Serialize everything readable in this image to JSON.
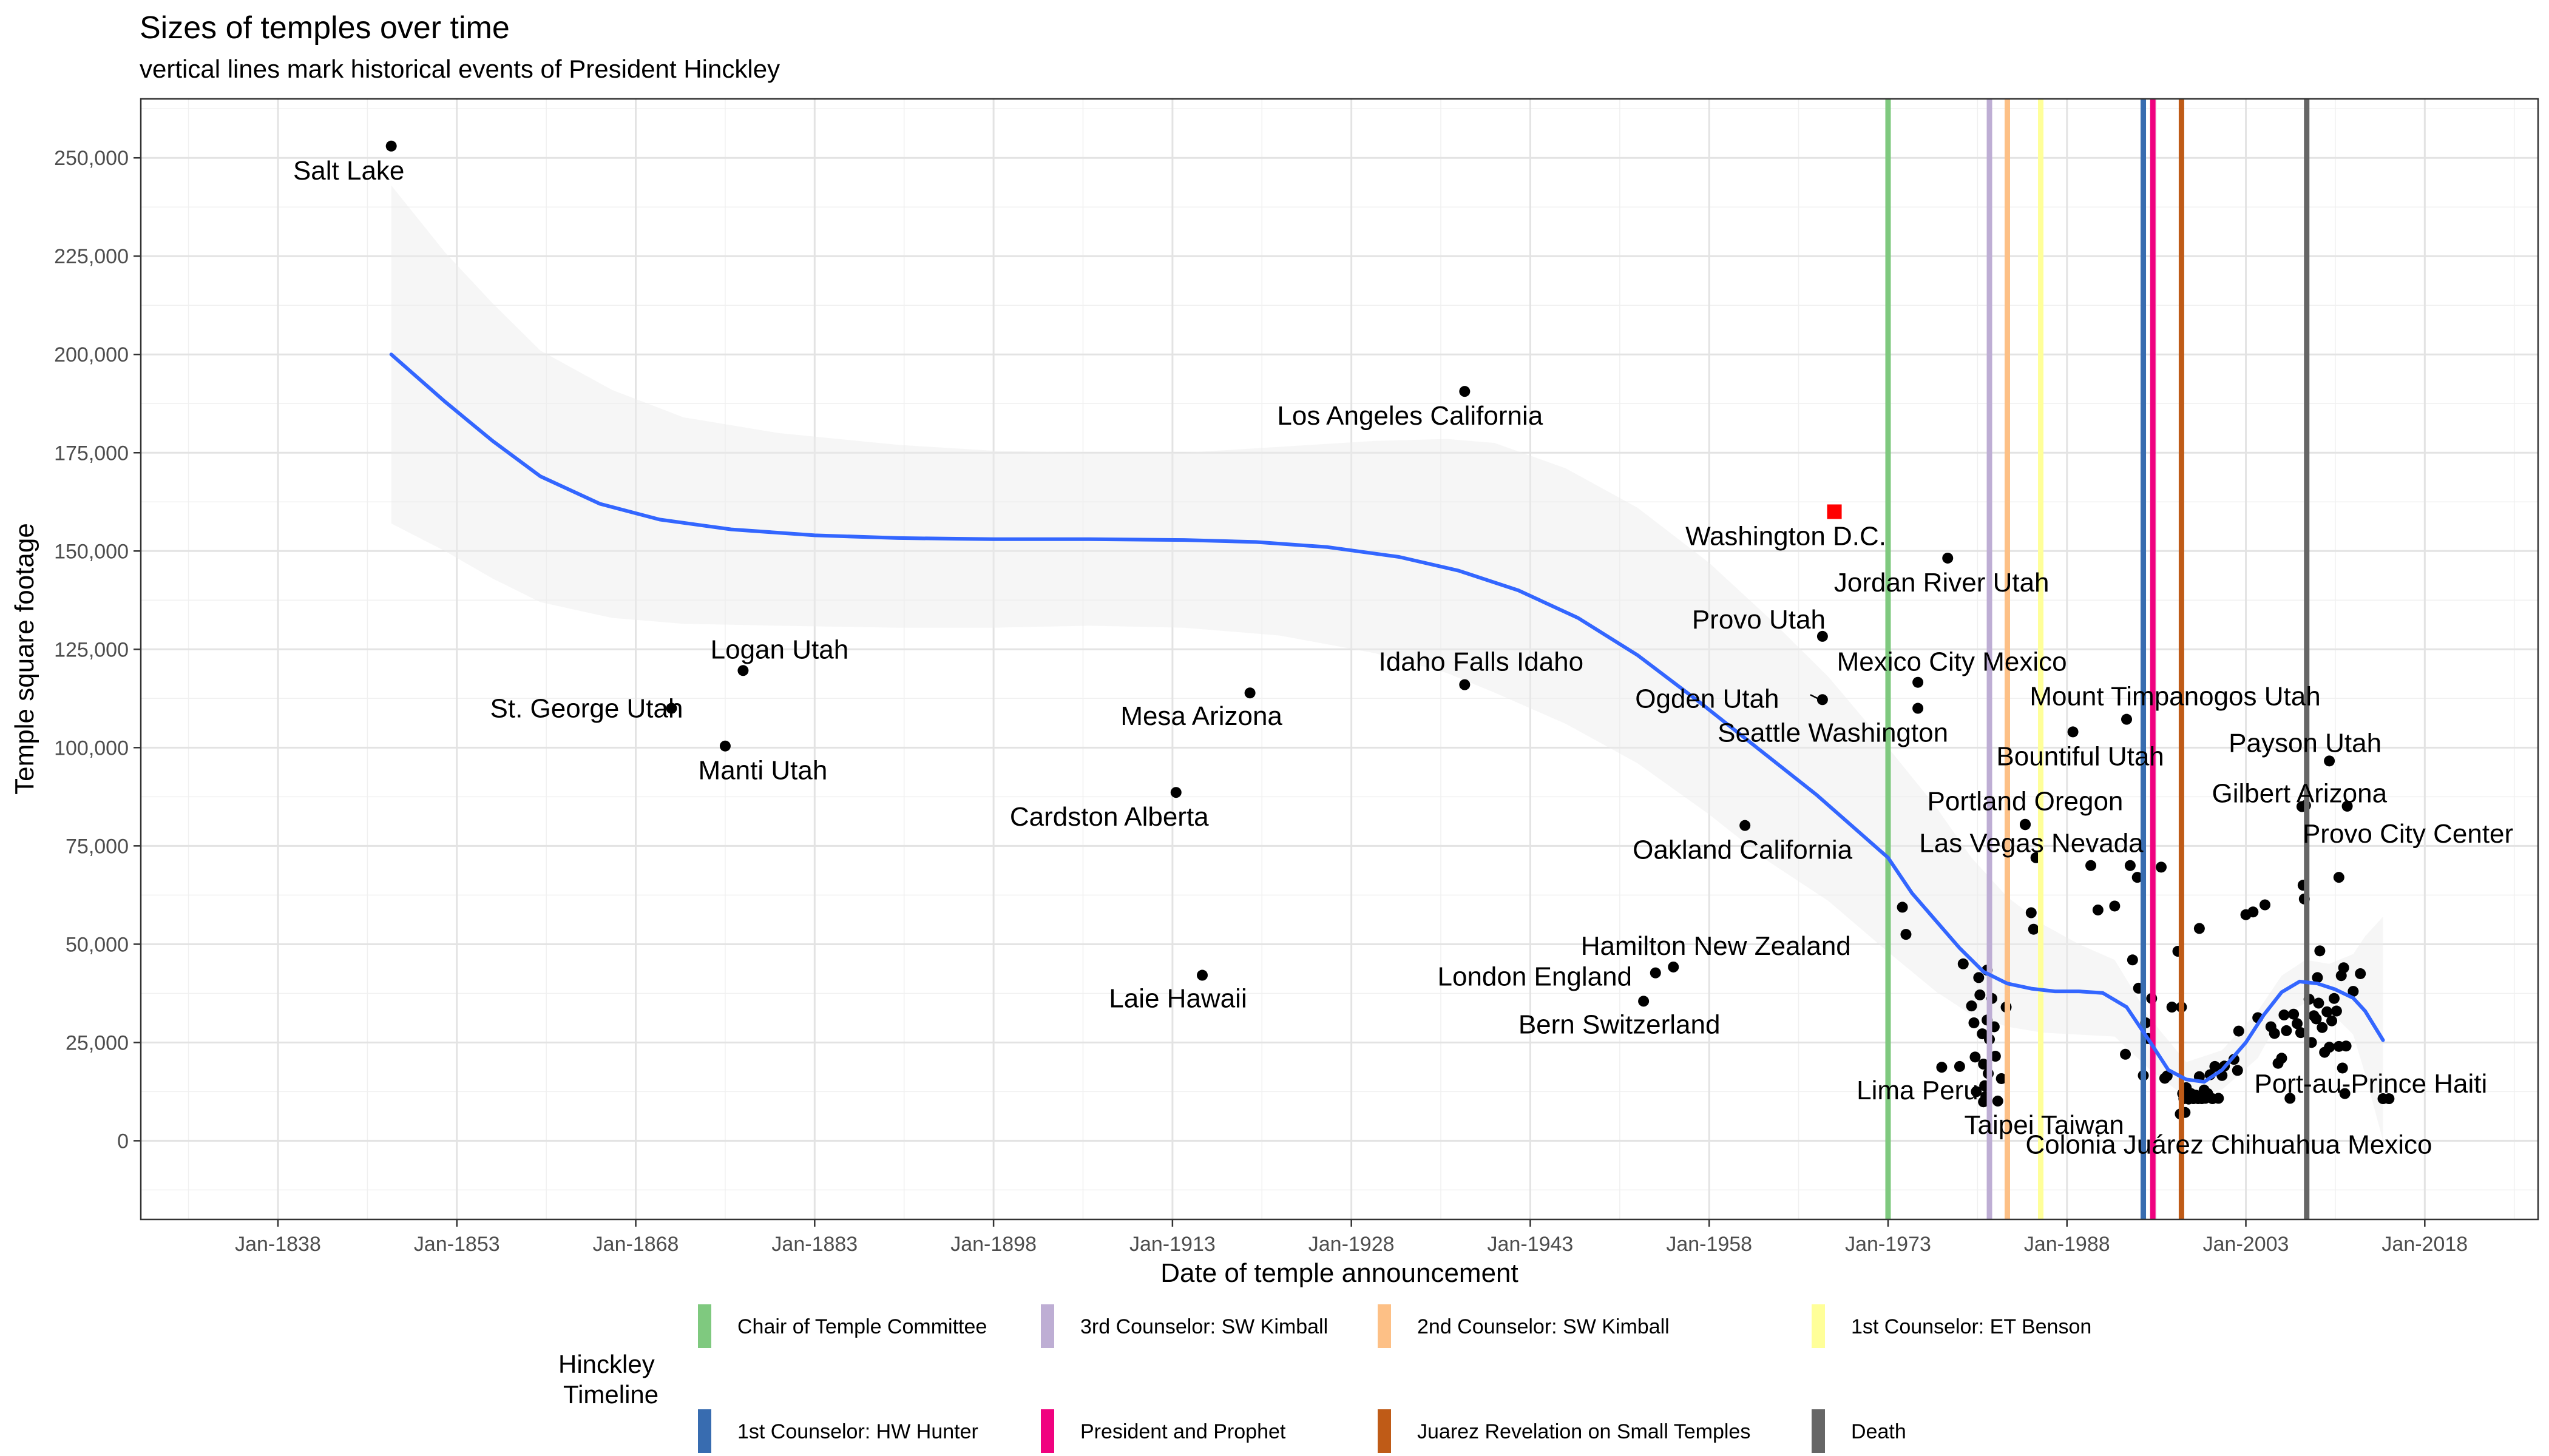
{
  "chart_data": {
    "type": "scatter",
    "title": "Sizes of temples over time",
    "subtitle": "vertical lines mark historical events of President Hinckley",
    "xlabel": "Date of temple announcement",
    "ylabel": "Temple square footage",
    "xlim": [
      1826.5,
      2027.5
    ],
    "ylim": [
      -20000,
      265000
    ],
    "x_ticks": [
      1838,
      1853,
      1868,
      1883,
      1898,
      1913,
      1928,
      1943,
      1958,
      1973,
      1988,
      2003,
      2018
    ],
    "x_tick_labels": [
      "Jan-1838",
      "Jan-1853",
      "Jan-1868",
      "Jan-1883",
      "Jan-1898",
      "Jan-1913",
      "Jan-1928",
      "Jan-1943",
      "Jan-1958",
      "Jan-1973",
      "Jan-1988",
      "Jan-2003",
      "Jan-2018"
    ],
    "y_ticks": [
      0,
      25000,
      50000,
      75000,
      100000,
      125000,
      150000,
      175000,
      200000,
      225000,
      250000
    ],
    "y_tick_labels": [
      "0",
      "25,000",
      "50,000",
      "75,000",
      "100,000",
      "125,000",
      "150,000",
      "175,000",
      "200,000",
      "225,000",
      "250,000"
    ],
    "grid": true,
    "legend_title": "Hinckley Timeline",
    "legend_position": "bottom",
    "events": [
      {
        "name": "Chair of Temple Committee",
        "x": 1973.0,
        "color": "#7fc97f"
      },
      {
        "name": "3rd Counselor: SW Kimball",
        "x": 1981.5,
        "color": "#beaed4"
      },
      {
        "name": "2nd Counselor: SW Kimball",
        "x": 1983.0,
        "color": "#fdc086"
      },
      {
        "name": "1st Counselor: ET Benson",
        "x": 1985.8,
        "color": "#ffff99"
      },
      {
        "name": "1st Counselor: HW Hunter",
        "x": 1994.4,
        "color": "#386cb0"
      },
      {
        "name": "President and Prophet",
        "x": 1995.2,
        "color": "#f0027f"
      },
      {
        "name": "Juarez Revelation on Small Temples",
        "x": 1997.6,
        "color": "#bf5b17"
      },
      {
        "name": "Death",
        "x": 2008.1,
        "color": "#666666"
      }
    ],
    "labeled_points": [
      {
        "name": "Salt Lake",
        "x": 1847.5,
        "y": 253000
      },
      {
        "name": "St. George Utah",
        "x": 1871.0,
        "y": 110000
      },
      {
        "name": "Logan Utah",
        "x": 1877.0,
        "y": 119600
      },
      {
        "name": "Manti Utah",
        "x": 1875.5,
        "y": 100400
      },
      {
        "name": "Laie Hawaii",
        "x": 1915.5,
        "y": 42100
      },
      {
        "name": "Cardston Alberta",
        "x": 1913.3,
        "y": 88600
      },
      {
        "name": "Mesa Arizona",
        "x": 1919.5,
        "y": 113900
      },
      {
        "name": "Idaho Falls Idaho",
        "x": 1937.5,
        "y": 116000
      },
      {
        "name": "Los Angeles California",
        "x": 1937.5,
        "y": 190600
      },
      {
        "name": "Bern Switzerland",
        "x": 1952.5,
        "y": 35500
      },
      {
        "name": "London England",
        "x": 1953.5,
        "y": 42700
      },
      {
        "name": "Hamilton New Zealand",
        "x": 1955.0,
        "y": 44200
      },
      {
        "name": "Oakland California",
        "x": 1961.0,
        "y": 80200
      },
      {
        "name": "Ogden Utah",
        "x": 1967.5,
        "y": 112200
      },
      {
        "name": "Provo Utah",
        "x": 1967.5,
        "y": 128300
      },
      {
        "name": "Washington D.C.",
        "x": 1968.5,
        "y": 160000
      },
      {
        "name": "Seattle Washington",
        "x": 1975.5,
        "y": 110000
      },
      {
        "name": "Mexico City Mexico",
        "x": 1975.5,
        "y": 116600
      },
      {
        "name": "Jordan River Utah",
        "x": 1978.0,
        "y": 148200
      },
      {
        "name": "Lima Peru",
        "x": 1977.5,
        "y": 18700
      },
      {
        "name": "Taipei Taiwan",
        "x": 1981.0,
        "y": 9900
      },
      {
        "name": "Portland Oregon",
        "x": 1984.5,
        "y": 80500
      },
      {
        "name": "Las Vegas Nevada",
        "x": 1984.5,
        "y": 80400
      },
      {
        "name": "Bountiful Utah",
        "x": 1988.5,
        "y": 104000
      },
      {
        "name": "Mount Timpanogos Utah",
        "x": 1993.0,
        "y": 107200
      },
      {
        "name": "Gilbert Arizona",
        "x": 2008.0,
        "y": 85300
      },
      {
        "name": "Payson Utah",
        "x": 2010.0,
        "y": 96600
      },
      {
        "name": "Provo City Center",
        "x": 2011.5,
        "y": 85100
      },
      {
        "name": "Colonia Juárez Chihuahua Mexico",
        "x": 1997.5,
        "y": 6800
      },
      {
        "name": "Port-au-Prince Haiti",
        "x": 2015.0,
        "y": 10700
      }
    ],
    "other_points": [
      [
        1974.2,
        59400
      ],
      [
        1974.5,
        52500
      ],
      [
        1979.0,
        18900
      ],
      [
        1979.3,
        45000
      ],
      [
        1980.0,
        34300
      ],
      [
        1980.2,
        30000
      ],
      [
        1980.3,
        21300
      ],
      [
        1980.4,
        12500
      ],
      [
        1980.6,
        41500
      ],
      [
        1980.7,
        37100
      ],
      [
        1980.9,
        27200
      ],
      [
        1981.0,
        19500
      ],
      [
        1981.1,
        14000
      ],
      [
        1981.2,
        11300
      ],
      [
        1981.3,
        30700
      ],
      [
        1981.3,
        43400
      ],
      [
        1981.4,
        17100
      ],
      [
        1981.5,
        25800
      ],
      [
        1981.7,
        36200
      ],
      [
        1981.9,
        29000
      ],
      [
        1982.0,
        21500
      ],
      [
        1982.2,
        10100
      ],
      [
        1982.5,
        15800
      ],
      [
        1982.9,
        34000
      ],
      [
        1985.0,
        58000
      ],
      [
        1985.2,
        53800
      ],
      [
        1985.4,
        72000
      ],
      [
        1990.0,
        70000
      ],
      [
        1990.6,
        58700
      ],
      [
        1992.0,
        59700
      ],
      [
        1992.9,
        22000
      ],
      [
        1993.3,
        70000
      ],
      [
        1993.5,
        46000
      ],
      [
        1993.9,
        67000
      ],
      [
        1994.0,
        38800
      ],
      [
        1994.4,
        16600
      ],
      [
        1994.6,
        30000
      ],
      [
        1994.8,
        26000
      ],
      [
        1995.1,
        36200
      ],
      [
        1995.9,
        69600
      ],
      [
        1996.2,
        15900
      ],
      [
        1996.4,
        16500
      ],
      [
        1996.8,
        34000
      ],
      [
        1997.3,
        48200
      ],
      [
        1997.6,
        34000
      ],
      [
        1997.7,
        12000
      ],
      [
        1997.8,
        10700
      ],
      [
        1997.9,
        7200
      ],
      [
        1998.0,
        13500
      ],
      [
        1998.2,
        10600
      ],
      [
        1998.4,
        12000
      ],
      [
        1998.6,
        10700
      ],
      [
        1998.8,
        11600
      ],
      [
        1999.0,
        10700
      ],
      [
        1999.1,
        16300
      ],
      [
        1999.1,
        54000
      ],
      [
        1999.3,
        10700
      ],
      [
        1999.5,
        12900
      ],
      [
        1999.6,
        10800
      ],
      [
        1999.8,
        12000
      ],
      [
        2000.0,
        16800
      ],
      [
        2000.2,
        10700
      ],
      [
        2000.4,
        18900
      ],
      [
        2000.7,
        10800
      ],
      [
        2001.0,
        16600
      ],
      [
        2001.2,
        19000
      ],
      [
        2002.0,
        20700
      ],
      [
        2002.3,
        17900
      ],
      [
        2002.4,
        27900
      ],
      [
        2003.0,
        57500
      ],
      [
        2003.6,
        58200
      ],
      [
        2004.0,
        31300
      ],
      [
        2004.6,
        60000
      ],
      [
        2005.1,
        29000
      ],
      [
        2005.4,
        27300
      ],
      [
        2005.7,
        19700
      ],
      [
        2006.0,
        21000
      ],
      [
        2006.2,
        32000
      ],
      [
        2006.4,
        28000
      ],
      [
        2006.7,
        10800
      ],
      [
        2007.0,
        32200
      ],
      [
        2007.3,
        29800
      ],
      [
        2007.6,
        27500
      ],
      [
        2007.7,
        85000
      ],
      [
        2007.8,
        65000
      ],
      [
        2007.9,
        61500
      ],
      [
        2008.3,
        36000
      ],
      [
        2008.5,
        25000
      ],
      [
        2008.7,
        31800
      ],
      [
        2008.9,
        31000
      ],
      [
        2009.0,
        41500
      ],
      [
        2009.1,
        35000
      ],
      [
        2009.2,
        48300
      ],
      [
        2009.4,
        28800
      ],
      [
        2009.6,
        22500
      ],
      [
        2009.8,
        32800
      ],
      [
        2010.0,
        23800
      ],
      [
        2010.2,
        30500
      ],
      [
        2010.4,
        36200
      ],
      [
        2010.6,
        33000
      ],
      [
        2010.8,
        67000
      ],
      [
        2010.8,
        24000
      ],
      [
        2011.0,
        42000
      ],
      [
        2011.1,
        18500
      ],
      [
        2011.2,
        44000
      ],
      [
        2011.3,
        12000
      ],
      [
        2011.4,
        24100
      ],
      [
        2012.0,
        38000
      ],
      [
        2012.6,
        42500
      ],
      [
        2014.5,
        10700
      ]
    ],
    "smooth_line": [
      [
        1847.5,
        200000
      ],
      [
        1852,
        188000
      ],
      [
        1856,
        178000
      ],
      [
        1860,
        169000
      ],
      [
        1865,
        162000
      ],
      [
        1870,
        158000
      ],
      [
        1876,
        155500
      ],
      [
        1883,
        154000
      ],
      [
        1890,
        153300
      ],
      [
        1898,
        153000
      ],
      [
        1906,
        153000
      ],
      [
        1914,
        152800
      ],
      [
        1920,
        152300
      ],
      [
        1926,
        151000
      ],
      [
        1932,
        148500
      ],
      [
        1937,
        145000
      ],
      [
        1942,
        140000
      ],
      [
        1947,
        133000
      ],
      [
        1952,
        123500
      ],
      [
        1957,
        112000
      ],
      [
        1962,
        100000
      ],
      [
        1967,
        88000
      ],
      [
        1970,
        80000
      ],
      [
        1973,
        72000
      ],
      [
        1975,
        63000
      ],
      [
        1977,
        56000
      ],
      [
        1979,
        49000
      ],
      [
        1981,
        43000
      ],
      [
        1983,
        40000
      ],
      [
        1985,
        38700
      ],
      [
        1987,
        38000
      ],
      [
        1989,
        38000
      ],
      [
        1991,
        37600
      ],
      [
        1993,
        34000
      ],
      [
        1995,
        25000
      ],
      [
        1996.5,
        18000
      ],
      [
        1998,
        15600
      ],
      [
        1999.5,
        15000
      ],
      [
        2001,
        18000
      ],
      [
        2003,
        25000
      ],
      [
        2004.5,
        32000
      ],
      [
        2006,
        37800
      ],
      [
        2007.5,
        40500
      ],
      [
        2009,
        40000
      ],
      [
        2010.5,
        38500
      ],
      [
        2012,
        36300
      ],
      [
        2013,
        33000
      ],
      [
        2014.5,
        25600
      ]
    ],
    "confidence_band": {
      "upper": [
        [
          1847.5,
          243000
        ],
        [
          1852,
          226000
        ],
        [
          1856,
          213000
        ],
        [
          1860,
          201000
        ],
        [
          1866,
          191000
        ],
        [
          1872,
          184000
        ],
        [
          1880,
          180000
        ],
        [
          1890,
          177000
        ],
        [
          1898,
          175500
        ],
        [
          1906,
          175000
        ],
        [
          1914,
          175000
        ],
        [
          1922,
          176500
        ],
        [
          1930,
          178000
        ],
        [
          1936,
          178500
        ],
        [
          1940,
          177500
        ],
        [
          1946,
          171000
        ],
        [
          1952,
          161000
        ],
        [
          1958,
          147000
        ],
        [
          1963,
          133000
        ],
        [
          1968,
          118000
        ],
        [
          1973,
          100000
        ],
        [
          1977,
          85000
        ],
        [
          1980,
          72000
        ],
        [
          1983,
          62000
        ],
        [
          1986,
          55000
        ],
        [
          1989,
          50000
        ],
        [
          1992,
          46000
        ],
        [
          1995,
          31000
        ],
        [
          1998,
          20000
        ],
        [
          2001,
          23000
        ],
        [
          2004,
          33000
        ],
        [
          2006,
          42000
        ],
        [
          2008,
          46000
        ],
        [
          2010,
          45000
        ],
        [
          2012,
          47500
        ],
        [
          2013,
          52000
        ],
        [
          2014.5,
          57000
        ]
      ],
      "lower": [
        [
          1847.5,
          157000
        ],
        [
          1852,
          150000
        ],
        [
          1856,
          143000
        ],
        [
          1860,
          137000
        ],
        [
          1866,
          133000
        ],
        [
          1872,
          131500
        ],
        [
          1880,
          131000
        ],
        [
          1890,
          130500
        ],
        [
          1898,
          130500
        ],
        [
          1906,
          131000
        ],
        [
          1914,
          130500
        ],
        [
          1922,
          128500
        ],
        [
          1930,
          124000
        ],
        [
          1936,
          119000
        ],
        [
          1940,
          114000
        ],
        [
          1946,
          106000
        ],
        [
          1952,
          96000
        ],
        [
          1958,
          83000
        ],
        [
          1963,
          71000
        ],
        [
          1968,
          61000
        ],
        [
          1973,
          48000
        ],
        [
          1977,
          38000
        ],
        [
          1980,
          32000
        ],
        [
          1983,
          29000
        ],
        [
          1986,
          27500
        ],
        [
          1989,
          27000
        ],
        [
          1992,
          26500
        ],
        [
          1995,
          18000
        ],
        [
          1998,
          11000
        ],
        [
          2001,
          13000
        ],
        [
          2004,
          21000
        ],
        [
          2006,
          32000
        ],
        [
          2008,
          35000
        ],
        [
          2010,
          33000
        ],
        [
          2012,
          27000
        ],
        [
          2013,
          17000
        ],
        [
          2014.5,
          0
        ]
      ]
    },
    "highlight_point": {
      "x": 1968.5,
      "y": 160000,
      "color": "#ff0000"
    }
  }
}
